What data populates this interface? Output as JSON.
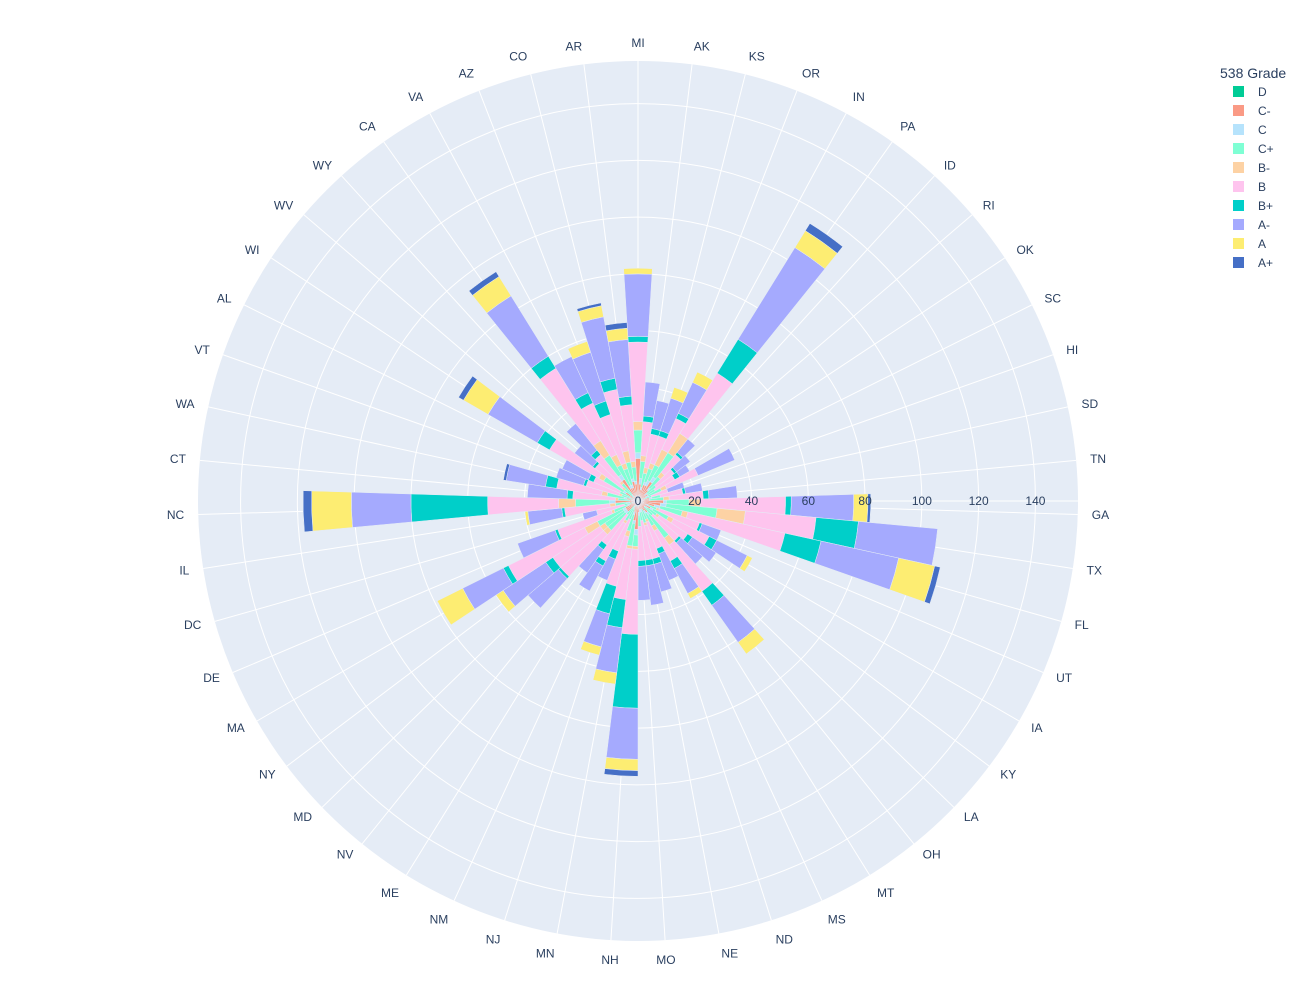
{
  "chart_data": {
    "type": "barpolar",
    "legend_title": "538 Grade",
    "legend_placement": "top-right",
    "grid": true,
    "radial_range": [
      0,
      155
    ],
    "radial_ticks": [
      0,
      20,
      40,
      60,
      80,
      100,
      120,
      140
    ],
    "rotation_deg": 90,
    "direction": "clockwise",
    "states": [
      "MI",
      "AK",
      "KS",
      "OR",
      "IN",
      "PA",
      "ID",
      "RI",
      "OK",
      "SC",
      "HI",
      "SD",
      "TN",
      "GA",
      "TX",
      "FL",
      "UT",
      "IA",
      "KY",
      "LA",
      "OH",
      "MT",
      "MS",
      "ND",
      "NE",
      "MO",
      "NH",
      "MN",
      "NJ",
      "NM",
      "ME",
      "NV",
      "MD",
      "NY",
      "MA",
      "DE",
      "DC",
      "IL",
      "NC",
      "CT",
      "WA",
      "VT",
      "AL",
      "WI",
      "WV",
      "WY",
      "CA",
      "VA",
      "AZ",
      "CO",
      "AR"
    ],
    "series": [
      {
        "name": "D",
        "color": "#00cc96",
        "values": [
          2,
          1,
          0,
          0,
          1,
          0,
          0,
          0,
          0,
          0,
          0,
          1,
          0,
          1,
          0,
          0,
          0,
          1,
          0,
          0,
          0,
          1,
          0,
          0,
          0,
          0,
          2,
          1,
          0,
          0,
          0,
          0,
          0,
          0,
          0,
          1,
          0,
          0,
          0,
          0,
          0,
          0,
          0,
          0,
          0,
          0,
          1,
          0,
          0,
          1,
          0
        ]
      },
      {
        "name": "C-",
        "color": "#fa9a85",
        "values": [
          13,
          5,
          4,
          6,
          5,
          8,
          5,
          3,
          4,
          3,
          2,
          3,
          4,
          8,
          8,
          6,
          3,
          4,
          3,
          3,
          5,
          3,
          3,
          3,
          3,
          4,
          8,
          6,
          4,
          3,
          2,
          2,
          5,
          5,
          5,
          2,
          2,
          3,
          8,
          3,
          4,
          2,
          3,
          5,
          2,
          2,
          8,
          5,
          5,
          6,
          6
        ]
      },
      {
        "name": "C",
        "color": "#b6e3fc",
        "values": [
          2,
          2,
          1,
          1,
          2,
          2,
          1,
          1,
          0,
          1,
          0,
          1,
          0,
          1,
          2,
          2,
          1,
          1,
          1,
          0,
          1,
          1,
          0,
          1,
          1,
          1,
          2,
          1,
          1,
          0,
          1,
          0,
          1,
          1,
          1,
          1,
          0,
          1,
          2,
          0,
          1,
          0,
          0,
          1,
          0,
          1,
          2,
          1,
          1,
          1,
          1
        ]
      },
      {
        "name": "C+",
        "color": "#7fffd4",
        "values": [
          8,
          6,
          5,
          5,
          6,
          10,
          5,
          4,
          3,
          5,
          3,
          3,
          5,
          8,
          18,
          8,
          3,
          6,
          4,
          4,
          10,
          5,
          4,
          4,
          3,
          4,
          4,
          8,
          6,
          4,
          5,
          4,
          8,
          8,
          10,
          5,
          3,
          4,
          12,
          4,
          6,
          4,
          4,
          8,
          4,
          5,
          8,
          8,
          6,
          6,
          5
        ]
      },
      {
        "name": "B-",
        "color": "#fdd2a4",
        "values": [
          3,
          2,
          2,
          2,
          6,
          8,
          2,
          0,
          0,
          2,
          0,
          0,
          2,
          4,
          10,
          2,
          1,
          2,
          1,
          0,
          3,
          2,
          1,
          1,
          0,
          0,
          1,
          1,
          2,
          0,
          1,
          0,
          2,
          2,
          5,
          1,
          0,
          2,
          6,
          1,
          2,
          1,
          0,
          2,
          1,
          1,
          6,
          4,
          2,
          4,
          2
        ]
      },
      {
        "name": "B",
        "color": "#fec4ee",
        "values": [
          28,
          12,
          12,
          10,
          12,
          25,
          8,
          8,
          8,
          12,
          6,
          8,
          12,
          30,
          25,
          35,
          15,
          14,
          12,
          12,
          20,
          12,
          10,
          12,
          14,
          12,
          30,
          18,
          18,
          12,
          15,
          13,
          20,
          20,
          30,
          20,
          10,
          16,
          25,
          15,
          16,
          12,
          10,
          20,
          12,
          12,
          30,
          20,
          18,
          22,
          20
        ]
      },
      {
        "name": "B+",
        "color": "#00cfc9",
        "values": [
          2,
          2,
          2,
          2,
          2,
          14,
          1,
          1,
          2,
          0,
          0,
          1,
          2,
          2,
          15,
          13,
          1,
          3,
          2,
          1,
          6,
          3,
          2,
          2,
          2,
          2,
          26,
          10,
          10,
          3,
          2,
          2,
          1,
          3,
          2,
          1,
          0,
          1,
          27,
          2,
          4,
          1,
          2,
          5,
          1,
          2,
          5,
          4,
          5,
          4,
          3
        ]
      },
      {
        "name": "A-",
        "color": "#a5aafe",
        "values": [
          22,
          12,
          10,
          12,
          12,
          38,
          6,
          6,
          4,
          14,
          6,
          6,
          10,
          22,
          28,
          28,
          7,
          12,
          10,
          10,
          16,
          10,
          10,
          10,
          14,
          12,
          18,
          16,
          12,
          8,
          10,
          10,
          14,
          18,
          16,
          14,
          5,
          12,
          21,
          14,
          14,
          10,
          10,
          20,
          8,
          12,
          25,
          14,
          18,
          22,
          20
        ]
      },
      {
        "name": "A",
        "color": "#fded72",
        "values": [
          2,
          0,
          0,
          4,
          4,
          7,
          0,
          0,
          0,
          0,
          0,
          0,
          0,
          5,
          0,
          13,
          0,
          2,
          0,
          0,
          5,
          2,
          0,
          0,
          0,
          0,
          4,
          4,
          3,
          0,
          0,
          0,
          0,
          3,
          10,
          0,
          0,
          1,
          14,
          0,
          0,
          0,
          0,
          10,
          0,
          0,
          8,
          0,
          4,
          4,
          4
        ]
      },
      {
        "name": "A+",
        "color": "#456fc6",
        "values": [
          0,
          0,
          0,
          0,
          0,
          3,
          0,
          0,
          0,
          0,
          0,
          0,
          0,
          1,
          0,
          2,
          0,
          0,
          0,
          0,
          0,
          0,
          0,
          0,
          0,
          0,
          2,
          0,
          0,
          0,
          0,
          0,
          0,
          0,
          0,
          0,
          0,
          0,
          3,
          0,
          1,
          0,
          0,
          2,
          0,
          0,
          2,
          0,
          0,
          1,
          2
        ]
      }
    ]
  }
}
